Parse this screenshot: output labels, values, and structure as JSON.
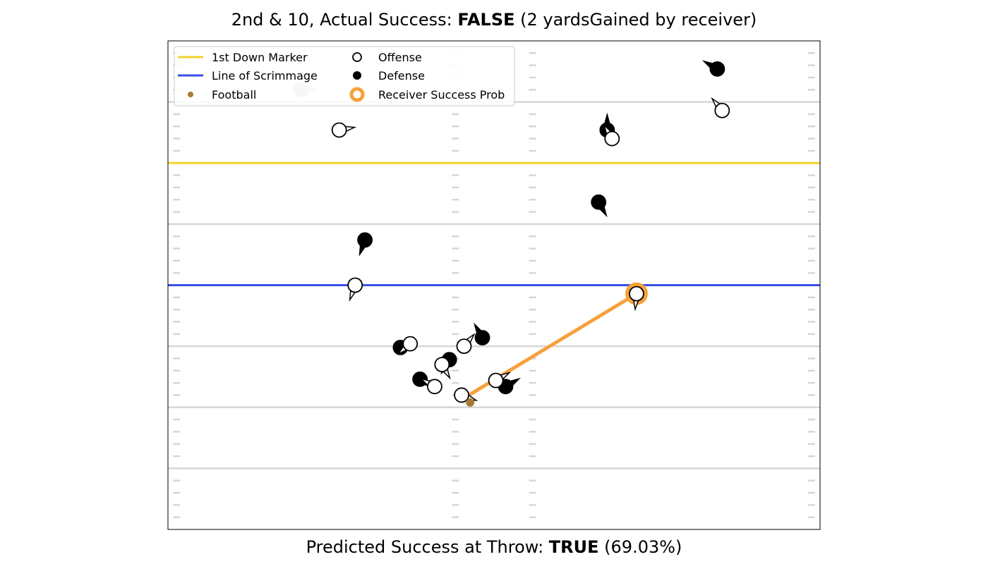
{
  "chart_data": {
    "type": "scatter",
    "title": {
      "prefix": "2nd & 10, Actual Success: ",
      "bold": "FALSE",
      "suffix": " (2 yardsGained by receiver)"
    },
    "subtitle": {
      "prefix": "Predicted Success at Throw: ",
      "bold": "TRUE",
      "suffix": " (69.03%)"
    },
    "xlim": [
      0,
      53.3
    ],
    "ylim": [
      -20,
      20
    ],
    "first_down_line": 10,
    "line_of_scrimmage": 0,
    "yard_lines": [
      15,
      5,
      -5,
      -10,
      -15
    ],
    "hash_columns": [
      0.7,
      23.5,
      29.8,
      52.6
    ],
    "legend": {
      "placement": "upper-left",
      "items": [
        {
          "label": "1st Down Marker",
          "kind": "line",
          "color": "#f2d22e"
        },
        {
          "label": "Line of Scrimmage",
          "kind": "line",
          "color": "#3a4ee6"
        },
        {
          "label": "Football",
          "kind": "dot",
          "color": "#a87a33"
        },
        {
          "label": "Offense",
          "kind": "open-circle",
          "color": "#000000"
        },
        {
          "label": "Defense",
          "kind": "filled-circle",
          "color": "#000000"
        },
        {
          "label": "Receiver Success Prob",
          "kind": "orange-ring",
          "color": "#f7a13b"
        }
      ]
    },
    "colors": {
      "first_down": "#f2d22e",
      "scrimmage": "#3a4ee6",
      "football": "#a87a33",
      "receiver": "#f7a13b",
      "yard_line": "#d6d6d6",
      "hash": "#d6d6d6",
      "ghost": "#c8c8c8"
    },
    "football": {
      "x": 24.7,
      "y": -9.6
    },
    "ghost_ball": {
      "x": 10.9,
      "y": 16.0,
      "dir": 0
    },
    "throw_line": {
      "from": {
        "x": 24.6,
        "y": -9.0
      },
      "to": {
        "x": 38.3,
        "y": -0.7
      }
    },
    "receiver": {
      "x": 38.3,
      "y": -0.7,
      "dir": 95
    },
    "offense": [
      {
        "x": 14.0,
        "y": 12.7,
        "dir": -10
      },
      {
        "x": 45.3,
        "y": 14.3,
        "dir": -130
      },
      {
        "x": 36.3,
        "y": 12.0,
        "dir": -120
      },
      {
        "x": 15.3,
        "y": 0.0,
        "dir": 110
      },
      {
        "x": 19.8,
        "y": -4.8,
        "dir": 140
      },
      {
        "x": 24.2,
        "y": -5.0,
        "dir": -50
      },
      {
        "x": 22.4,
        "y": -6.5,
        "dir": 60
      },
      {
        "x": 21.8,
        "y": -8.3,
        "dir": -150
      },
      {
        "x": 26.8,
        "y": -7.8,
        "dir": -30
      },
      {
        "x": 24.0,
        "y": -9.0,
        "dir": 20
      }
    ],
    "defense": [
      {
        "x": 44.9,
        "y": 17.7,
        "dir": -150
      },
      {
        "x": 35.9,
        "y": 12.7,
        "dir": -90
      },
      {
        "x": 35.2,
        "y": 6.8,
        "dir": 60
      },
      {
        "x": 16.1,
        "y": 3.7,
        "dir": 110
      },
      {
        "x": 25.7,
        "y": -4.3,
        "dir": -120
      },
      {
        "x": 19.0,
        "y": -5.1,
        "dir": -40
      },
      {
        "x": 23.0,
        "y": -6.1,
        "dir": 120
      },
      {
        "x": 20.6,
        "y": -7.7,
        "dir": 30
      },
      {
        "x": 27.6,
        "y": -8.3,
        "dir": -30
      }
    ]
  }
}
